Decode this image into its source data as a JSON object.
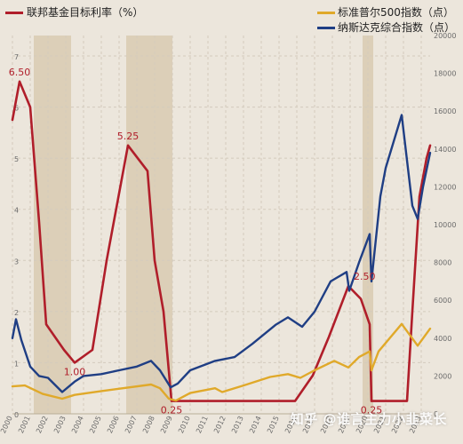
{
  "chart_data": {
    "type": "line",
    "legend": {
      "placement": "top",
      "left_label": "联邦基金目标利率（%）",
      "right_label_1": "标准普尔500指数（点）",
      "right_label_2": "纳斯达克综合指数（点）"
    },
    "x_ticks": [
      "2000",
      "2001",
      "2002",
      "2003",
      "2004",
      "2005",
      "2006",
      "2007",
      "2008",
      "2009",
      "2010",
      "2011",
      "2012",
      "2013",
      "2014",
      "2015",
      "2016",
      "2017",
      "2018",
      "2019",
      "2020",
      "2021",
      "2022",
      "2023"
    ],
    "x_range": [
      2000,
      2023.5
    ],
    "left_axis": {
      "ticks": [
        "0",
        "1",
        "2",
        "3",
        "4",
        "5",
        "6",
        "7"
      ],
      "range": [
        0,
        7.4
      ]
    },
    "right_axis": {
      "ticks": [
        "0",
        "2000",
        "4000",
        "6000",
        "8000",
        "10000",
        "12000",
        "14000",
        "16000",
        "18000",
        "20000"
      ],
      "range": [
        0,
        20000
      ]
    },
    "grid": true,
    "shaded_periods": [
      [
        2001.2,
        2003.3
      ],
      [
        2006.4,
        2009.0
      ],
      [
        2019.7,
        2020.3
      ]
    ],
    "series": [
      {
        "name": "联邦基金目标利率（%）",
        "axis": "left",
        "color": "#b01e2a",
        "points": [
          [
            2000.0,
            5.75
          ],
          [
            2000.4,
            6.5
          ],
          [
            2001.0,
            6.0
          ],
          [
            2001.5,
            3.75
          ],
          [
            2001.9,
            1.75
          ],
          [
            2002.9,
            1.25
          ],
          [
            2003.5,
            1.0
          ],
          [
            2004.5,
            1.25
          ],
          [
            2005.3,
            3.0
          ],
          [
            2006.5,
            5.25
          ],
          [
            2007.6,
            4.75
          ],
          [
            2008.0,
            3.0
          ],
          [
            2008.5,
            2.0
          ],
          [
            2008.95,
            0.25
          ],
          [
            2015.9,
            0.25
          ],
          [
            2016.9,
            0.75
          ],
          [
            2017.8,
            1.5
          ],
          [
            2018.9,
            2.5
          ],
          [
            2019.6,
            2.25
          ],
          [
            2020.1,
            1.75
          ],
          [
            2020.2,
            0.25
          ],
          [
            2022.2,
            0.25
          ],
          [
            2022.5,
            2.0
          ],
          [
            2022.9,
            4.25
          ],
          [
            2023.3,
            5.0
          ],
          [
            2023.5,
            5.25
          ]
        ]
      },
      {
        "name": "标准普尔500指数（点）",
        "axis": "right",
        "color": "#e0a92a",
        "points": [
          [
            2000.0,
            1450
          ],
          [
            2000.7,
            1500
          ],
          [
            2001.7,
            1050
          ],
          [
            2002.8,
            800
          ],
          [
            2003.5,
            1000
          ],
          [
            2005.0,
            1200
          ],
          [
            2007.8,
            1550
          ],
          [
            2008.3,
            1350
          ],
          [
            2008.8,
            800
          ],
          [
            2009.2,
            700
          ],
          [
            2010.0,
            1100
          ],
          [
            2011.4,
            1350
          ],
          [
            2011.8,
            1150
          ],
          [
            2013.0,
            1500
          ],
          [
            2014.5,
            1950
          ],
          [
            2015.5,
            2100
          ],
          [
            2016.2,
            1900
          ],
          [
            2017.0,
            2300
          ],
          [
            2018.1,
            2800
          ],
          [
            2018.9,
            2450
          ],
          [
            2019.5,
            3000
          ],
          [
            2020.1,
            3300
          ],
          [
            2020.2,
            2300
          ],
          [
            2020.6,
            3300
          ],
          [
            2021.9,
            4750
          ],
          [
            2022.8,
            3600
          ],
          [
            2023.5,
            4500
          ]
        ]
      },
      {
        "name": "纳斯达克综合指数（点）",
        "axis": "right",
        "color": "#1f3e84",
        "points": [
          [
            2000.0,
            4000
          ],
          [
            2000.2,
            5000
          ],
          [
            2000.5,
            3900
          ],
          [
            2001.0,
            2500
          ],
          [
            2001.5,
            2000
          ],
          [
            2002.0,
            1900
          ],
          [
            2002.8,
            1150
          ],
          [
            2003.5,
            1700
          ],
          [
            2004.0,
            2000
          ],
          [
            2005.0,
            2100
          ],
          [
            2006.0,
            2300
          ],
          [
            2007.0,
            2500
          ],
          [
            2007.8,
            2800
          ],
          [
            2008.3,
            2300
          ],
          [
            2008.9,
            1400
          ],
          [
            2009.3,
            1600
          ],
          [
            2010.0,
            2300
          ],
          [
            2011.4,
            2800
          ],
          [
            2012.5,
            3000
          ],
          [
            2013.5,
            3700
          ],
          [
            2014.8,
            4700
          ],
          [
            2015.5,
            5100
          ],
          [
            2016.3,
            4600
          ],
          [
            2017.0,
            5400
          ],
          [
            2017.9,
            7000
          ],
          [
            2018.8,
            7500
          ],
          [
            2018.95,
            6500
          ],
          [
            2019.5,
            8000
          ],
          [
            2020.1,
            9500
          ],
          [
            2020.2,
            7000
          ],
          [
            2020.7,
            11500
          ],
          [
            2021.0,
            13000
          ],
          [
            2021.9,
            15800
          ],
          [
            2022.5,
            11000
          ],
          [
            2022.8,
            10300
          ],
          [
            2023.1,
            12000
          ],
          [
            2023.5,
            13800
          ]
        ]
      }
    ],
    "annotations": [
      {
        "text": "6.50",
        "x": 2000.4,
        "y": 6.5,
        "axis": "left"
      },
      {
        "text": "1.00",
        "x": 2003.5,
        "y": 1.0,
        "axis": "left"
      },
      {
        "text": "5.25",
        "x": 2006.5,
        "y": 5.25,
        "axis": "left"
      },
      {
        "text": "0.25",
        "x": 2008.95,
        "y": 0.25,
        "axis": "left"
      },
      {
        "text": "2.50",
        "x": 2018.9,
        "y": 2.5,
        "axis": "left"
      },
      {
        "text": "0.25",
        "x": 2020.2,
        "y": 0.25,
        "axis": "left"
      }
    ]
  },
  "watermark": "知乎 @谁言主力小韭菜长"
}
